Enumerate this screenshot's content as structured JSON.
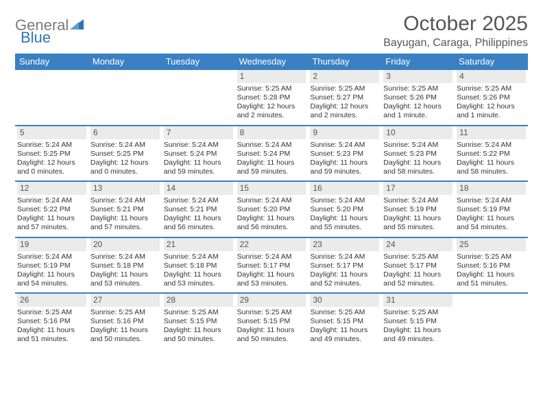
{
  "logo": {
    "general": "General",
    "blue": "Blue"
  },
  "header": {
    "title": "October 2025",
    "subtitle": "Bayugan, Caraga, Philippines"
  },
  "style": {
    "accent_color": "#3a80c3",
    "logo_blue": "#2d74b5",
    "logo_grey": "#7a7a7a",
    "daynum_bg": "#ebebeb",
    "text_color": "#333333",
    "title_color": "#555555",
    "background": "#ffffff",
    "title_fontsize": 30,
    "subtitle_fontsize": 16,
    "header_fontsize": 13,
    "cell_fontsize": 10.5,
    "daynum_fontsize": 12,
    "columns": 7
  },
  "dayNames": [
    "Sunday",
    "Monday",
    "Tuesday",
    "Wednesday",
    "Thursday",
    "Friday",
    "Saturday"
  ],
  "weeks": [
    [
      {
        "n": "",
        "sunrise": "",
        "sunset": "",
        "daylight": ""
      },
      {
        "n": "",
        "sunrise": "",
        "sunset": "",
        "daylight": ""
      },
      {
        "n": "",
        "sunrise": "",
        "sunset": "",
        "daylight": ""
      },
      {
        "n": "1",
        "sunrise": "Sunrise: 5:25 AM",
        "sunset": "Sunset: 5:28 PM",
        "daylight": "Daylight: 12 hours and 2 minutes."
      },
      {
        "n": "2",
        "sunrise": "Sunrise: 5:25 AM",
        "sunset": "Sunset: 5:27 PM",
        "daylight": "Daylight: 12 hours and 2 minutes."
      },
      {
        "n": "3",
        "sunrise": "Sunrise: 5:25 AM",
        "sunset": "Sunset: 5:26 PM",
        "daylight": "Daylight: 12 hours and 1 minute."
      },
      {
        "n": "4",
        "sunrise": "Sunrise: 5:25 AM",
        "sunset": "Sunset: 5:26 PM",
        "daylight": "Daylight: 12 hours and 1 minute."
      }
    ],
    [
      {
        "n": "5",
        "sunrise": "Sunrise: 5:24 AM",
        "sunset": "Sunset: 5:25 PM",
        "daylight": "Daylight: 12 hours and 0 minutes."
      },
      {
        "n": "6",
        "sunrise": "Sunrise: 5:24 AM",
        "sunset": "Sunset: 5:25 PM",
        "daylight": "Daylight: 12 hours and 0 minutes."
      },
      {
        "n": "7",
        "sunrise": "Sunrise: 5:24 AM",
        "sunset": "Sunset: 5:24 PM",
        "daylight": "Daylight: 11 hours and 59 minutes."
      },
      {
        "n": "8",
        "sunrise": "Sunrise: 5:24 AM",
        "sunset": "Sunset: 5:24 PM",
        "daylight": "Daylight: 11 hours and 59 minutes."
      },
      {
        "n": "9",
        "sunrise": "Sunrise: 5:24 AM",
        "sunset": "Sunset: 5:23 PM",
        "daylight": "Daylight: 11 hours and 59 minutes."
      },
      {
        "n": "10",
        "sunrise": "Sunrise: 5:24 AM",
        "sunset": "Sunset: 5:23 PM",
        "daylight": "Daylight: 11 hours and 58 minutes."
      },
      {
        "n": "11",
        "sunrise": "Sunrise: 5:24 AM",
        "sunset": "Sunset: 5:22 PM",
        "daylight": "Daylight: 11 hours and 58 minutes."
      }
    ],
    [
      {
        "n": "12",
        "sunrise": "Sunrise: 5:24 AM",
        "sunset": "Sunset: 5:22 PM",
        "daylight": "Daylight: 11 hours and 57 minutes."
      },
      {
        "n": "13",
        "sunrise": "Sunrise: 5:24 AM",
        "sunset": "Sunset: 5:21 PM",
        "daylight": "Daylight: 11 hours and 57 minutes."
      },
      {
        "n": "14",
        "sunrise": "Sunrise: 5:24 AM",
        "sunset": "Sunset: 5:21 PM",
        "daylight": "Daylight: 11 hours and 56 minutes."
      },
      {
        "n": "15",
        "sunrise": "Sunrise: 5:24 AM",
        "sunset": "Sunset: 5:20 PM",
        "daylight": "Daylight: 11 hours and 56 minutes."
      },
      {
        "n": "16",
        "sunrise": "Sunrise: 5:24 AM",
        "sunset": "Sunset: 5:20 PM",
        "daylight": "Daylight: 11 hours and 55 minutes."
      },
      {
        "n": "17",
        "sunrise": "Sunrise: 5:24 AM",
        "sunset": "Sunset: 5:19 PM",
        "daylight": "Daylight: 11 hours and 55 minutes."
      },
      {
        "n": "18",
        "sunrise": "Sunrise: 5:24 AM",
        "sunset": "Sunset: 5:19 PM",
        "daylight": "Daylight: 11 hours and 54 minutes."
      }
    ],
    [
      {
        "n": "19",
        "sunrise": "Sunrise: 5:24 AM",
        "sunset": "Sunset: 5:19 PM",
        "daylight": "Daylight: 11 hours and 54 minutes."
      },
      {
        "n": "20",
        "sunrise": "Sunrise: 5:24 AM",
        "sunset": "Sunset: 5:18 PM",
        "daylight": "Daylight: 11 hours and 53 minutes."
      },
      {
        "n": "21",
        "sunrise": "Sunrise: 5:24 AM",
        "sunset": "Sunset: 5:18 PM",
        "daylight": "Daylight: 11 hours and 53 minutes."
      },
      {
        "n": "22",
        "sunrise": "Sunrise: 5:24 AM",
        "sunset": "Sunset: 5:17 PM",
        "daylight": "Daylight: 11 hours and 53 minutes."
      },
      {
        "n": "23",
        "sunrise": "Sunrise: 5:24 AM",
        "sunset": "Sunset: 5:17 PM",
        "daylight": "Daylight: 11 hours and 52 minutes."
      },
      {
        "n": "24",
        "sunrise": "Sunrise: 5:25 AM",
        "sunset": "Sunset: 5:17 PM",
        "daylight": "Daylight: 11 hours and 52 minutes."
      },
      {
        "n": "25",
        "sunrise": "Sunrise: 5:25 AM",
        "sunset": "Sunset: 5:16 PM",
        "daylight": "Daylight: 11 hours and 51 minutes."
      }
    ],
    [
      {
        "n": "26",
        "sunrise": "Sunrise: 5:25 AM",
        "sunset": "Sunset: 5:16 PM",
        "daylight": "Daylight: 11 hours and 51 minutes."
      },
      {
        "n": "27",
        "sunrise": "Sunrise: 5:25 AM",
        "sunset": "Sunset: 5:16 PM",
        "daylight": "Daylight: 11 hours and 50 minutes."
      },
      {
        "n": "28",
        "sunrise": "Sunrise: 5:25 AM",
        "sunset": "Sunset: 5:15 PM",
        "daylight": "Daylight: 11 hours and 50 minutes."
      },
      {
        "n": "29",
        "sunrise": "Sunrise: 5:25 AM",
        "sunset": "Sunset: 5:15 PM",
        "daylight": "Daylight: 11 hours and 50 minutes."
      },
      {
        "n": "30",
        "sunrise": "Sunrise: 5:25 AM",
        "sunset": "Sunset: 5:15 PM",
        "daylight": "Daylight: 11 hours and 49 minutes."
      },
      {
        "n": "31",
        "sunrise": "Sunrise: 5:25 AM",
        "sunset": "Sunset: 5:15 PM",
        "daylight": "Daylight: 11 hours and 49 minutes."
      },
      {
        "n": "",
        "sunrise": "",
        "sunset": "",
        "daylight": ""
      }
    ]
  ]
}
